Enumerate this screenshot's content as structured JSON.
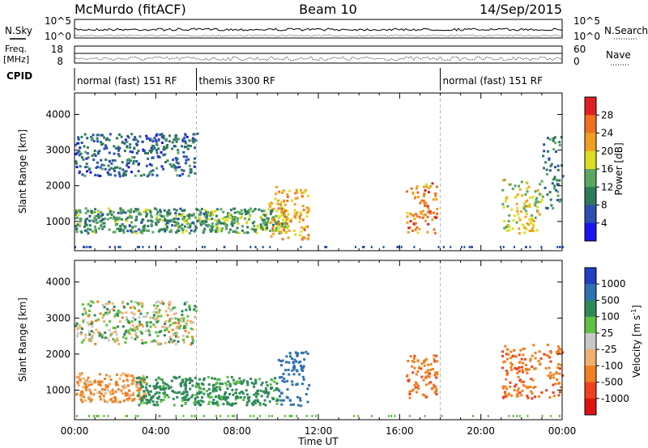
{
  "header": {
    "station": "McMurdo (fitACF)",
    "beam": "Beam 10",
    "date": "14/Sep/2015"
  },
  "top_panels": {
    "nsky_label": "N.Sky",
    "nsearch_label": "N.Search",
    "nsky_ticks": [
      "10^5",
      "10^0"
    ],
    "nsearch_ticks": [
      "10^5",
      "10^0"
    ],
    "freq_label": "Freq.",
    "freq_unit": "[MHz]",
    "freq_ticks": [
      "18",
      "8"
    ],
    "nave_label": "Nave",
    "nave_ticks": [
      "60",
      "0"
    ],
    "cpid_label": "CPID",
    "cpid_segments": [
      {
        "label": "normal (fast) 151 RF",
        "start_hour": 0,
        "end_hour": 6
      },
      {
        "label": "themis 3300 RF",
        "start_hour": 6,
        "end_hour": 18
      },
      {
        "label": "normal (fast) 151 RF",
        "start_hour": 18,
        "end_hour": 24
      }
    ]
  },
  "power_colorbar": {
    "label": "Power [dB]",
    "ticks": [
      "4",
      "8",
      "12",
      "16",
      "20",
      "24",
      "28"
    ],
    "colors": [
      "#1a14f0",
      "#2a4fb0",
      "#2f7a5a",
      "#5aa860",
      "#dcdc20",
      "#f0a020",
      "#f07020",
      "#e02020"
    ]
  },
  "velocity_colorbar": {
    "label": "Velocity [m s",
    "label_exp": "-1",
    "label_close": "]",
    "ticks": [
      "1000",
      "500",
      "100",
      "25",
      "-25",
      "-100",
      "-500",
      "-1000"
    ],
    "colors": [
      "#2040c0",
      "#3070b0",
      "#2f8a5a",
      "#60c040",
      "#c8c8c8",
      "#f0b070",
      "#f08020",
      "#f04020",
      "#e01010"
    ]
  },
  "chart_data": [
    {
      "type": "heatmap",
      "name": "power",
      "ylabel": "Slant Range [km]",
      "xlabel": "Time UT",
      "x_ticks": [
        "00:00",
        "04:00",
        "08:00",
        "12:00",
        "16:00",
        "20:00",
        "00:00"
      ],
      "y_ticks": [
        "1000",
        "2000",
        "3000",
        "4000"
      ],
      "xlim_hours": [
        0,
        24
      ],
      "ylim_km": [
        180,
        4600
      ],
      "regions": [
        {
          "t0": 0.0,
          "t1": 6.0,
          "r0": 2300,
          "r1": 3500,
          "level": 8
        },
        {
          "t0": 0.0,
          "t1": 6.5,
          "r0": 700,
          "r1": 1400,
          "level": 12
        },
        {
          "t0": 6.5,
          "t1": 10.5,
          "r0": 700,
          "r1": 1400,
          "level": 14
        },
        {
          "t0": 9.5,
          "t1": 11.5,
          "r0": 500,
          "r1": 2000,
          "level": 22
        },
        {
          "t0": 16.3,
          "t1": 17.8,
          "r0": 700,
          "r1": 2100,
          "level": 24
        },
        {
          "t0": 21.0,
          "t1": 23.0,
          "r0": 700,
          "r1": 2200,
          "level": 18
        },
        {
          "t0": 23.0,
          "t1": 24.0,
          "r0": 1300,
          "r1": 3400,
          "level": 10
        }
      ]
    },
    {
      "type": "heatmap",
      "name": "velocity",
      "ylabel": "Slant Range [km]",
      "xlabel": "Time UT",
      "x_ticks": [
        "00:00",
        "04:00",
        "08:00",
        "12:00",
        "16:00",
        "20:00",
        "00:00"
      ],
      "y_ticks": [
        "1000",
        "2000",
        "3000",
        "4000"
      ],
      "xlim_hours": [
        0,
        24
      ],
      "ylim_km": [
        180,
        4600
      ],
      "regions": [
        {
          "t0": 0.0,
          "t1": 6.0,
          "r0": 2300,
          "r1": 3500,
          "vel": 20
        },
        {
          "t0": 0.0,
          "t1": 3.5,
          "r0": 700,
          "r1": 1500,
          "vel": -150
        },
        {
          "t0": 3.0,
          "t1": 10.0,
          "r0": 600,
          "r1": 1400,
          "vel": 200
        },
        {
          "t0": 10.0,
          "t1": 11.5,
          "r0": 600,
          "r1": 2100,
          "vel": 700
        },
        {
          "t0": 16.3,
          "t1": 17.8,
          "r0": 800,
          "r1": 2000,
          "vel": -400
        },
        {
          "t0": 21.0,
          "t1": 24.0,
          "r0": 800,
          "r1": 2300,
          "vel": -450
        }
      ]
    }
  ]
}
